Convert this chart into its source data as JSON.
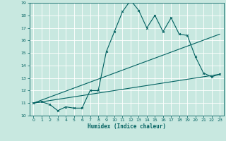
{
  "xlabel": "Humidex (Indice chaleur)",
  "bg_color": "#c8e8e0",
  "grid_color": "#ffffff",
  "line_color": "#006060",
  "xlim": [
    -0.5,
    23.5
  ],
  "ylim": [
    10,
    19
  ],
  "xticks": [
    0,
    1,
    2,
    3,
    4,
    5,
    6,
    7,
    8,
    9,
    10,
    11,
    12,
    13,
    14,
    15,
    16,
    17,
    18,
    19,
    20,
    21,
    22,
    23
  ],
  "yticks": [
    10,
    11,
    12,
    13,
    14,
    15,
    16,
    17,
    18,
    19
  ],
  "line1_x": [
    0,
    1,
    2,
    3,
    4,
    5,
    6,
    7,
    8,
    9,
    10,
    11,
    12,
    13,
    14,
    15,
    16,
    17,
    18,
    19,
    20,
    21,
    22,
    23
  ],
  "line1_y": [
    11.0,
    11.1,
    10.9,
    10.4,
    10.7,
    10.6,
    10.6,
    12.0,
    12.0,
    15.1,
    16.7,
    18.3,
    19.2,
    18.4,
    17.0,
    18.0,
    16.7,
    17.8,
    16.5,
    16.4,
    14.7,
    13.4,
    13.1,
    13.3
  ],
  "line2_x": [
    0,
    23
  ],
  "line2_y": [
    11.0,
    16.5
  ],
  "line3_x": [
    0,
    23
  ],
  "line3_y": [
    11.0,
    13.3
  ]
}
